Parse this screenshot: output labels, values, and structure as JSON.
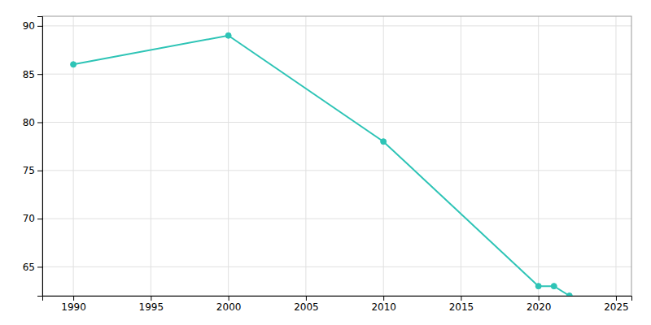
{
  "chart_data": {
    "type": "line",
    "x": [
      1990,
      2000,
      2010,
      2020,
      2021,
      2022
    ],
    "values": [
      86,
      89,
      78,
      63,
      63,
      62
    ],
    "color": "#2ec4b6",
    "marker": "circle",
    "xlim": [
      1988,
      2026
    ],
    "ylim": [
      62,
      91
    ],
    "xticks": [
      1990,
      1995,
      2000,
      2005,
      2010,
      2015,
      2020,
      2025
    ],
    "yticks": [
      65,
      70,
      75,
      80,
      85,
      90
    ],
    "grid": true
  }
}
